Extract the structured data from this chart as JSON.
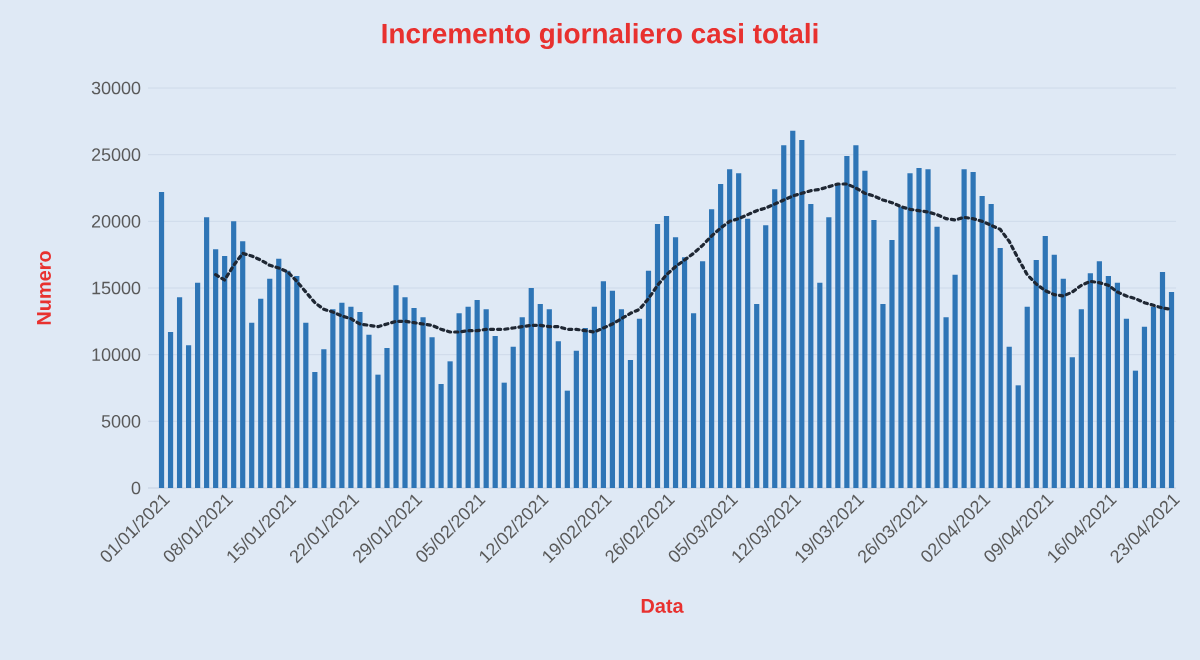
{
  "chart_data": {
    "type": "bar",
    "title": "Incremento giornaliero casi totali",
    "xlabel": "Data",
    "ylabel": "Numero",
    "categories": [
      "01/01/2021",
      null,
      null,
      null,
      null,
      null,
      null,
      "08/01/2021",
      null,
      null,
      null,
      null,
      null,
      null,
      "15/01/2021",
      null,
      null,
      null,
      null,
      null,
      null,
      "22/01/2021",
      null,
      null,
      null,
      null,
      null,
      null,
      "29/01/2021",
      null,
      null,
      null,
      null,
      null,
      null,
      "05/02/2021",
      null,
      null,
      null,
      null,
      null,
      null,
      "12/02/2021",
      null,
      null,
      null,
      null,
      null,
      null,
      "19/02/2021",
      null,
      null,
      null,
      null,
      null,
      null,
      "26/02/2021",
      null,
      null,
      null,
      null,
      null,
      null,
      "05/03/2021",
      null,
      null,
      null,
      null,
      null,
      null,
      "12/03/2021",
      null,
      null,
      null,
      null,
      null,
      null,
      "19/03/2021",
      null,
      null,
      null,
      null,
      null,
      null,
      "26/03/2021",
      null,
      null,
      null,
      null,
      null,
      null,
      "02/04/2021",
      null,
      null,
      null,
      null,
      null,
      null,
      "09/04/2021",
      null,
      null,
      null,
      null,
      null,
      null,
      "16/04/2021",
      null,
      null,
      null,
      null,
      null,
      null,
      "23/04/2021"
    ],
    "series": [
      {
        "color": "#2e75b6",
        "values": [
          22200,
          11700,
          14300,
          10700,
          15400,
          20300,
          17900,
          17400,
          20000,
          18500,
          12400,
          14200,
          15700,
          17200,
          16300,
          15900,
          12400,
          8700,
          10400,
          13400,
          13900,
          13600,
          13200,
          11500,
          8500,
          10500,
          15200,
          14300,
          13500,
          12800,
          11300,
          7800,
          9500,
          13100,
          13600,
          14100,
          13400,
          11400,
          7900,
          10600,
          12800,
          15000,
          13800,
          13400,
          11000,
          7300,
          10300,
          12000,
          13600,
          15500,
          14800,
          13400,
          9600,
          12700,
          16300,
          19800,
          20400,
          18800,
          17300,
          13100,
          17000,
          20900,
          22800,
          23900,
          23600,
          20200,
          13800,
          19700,
          22400,
          25700,
          26800,
          26100,
          21300,
          15400,
          20300,
          22800,
          24900,
          25700,
          23800,
          20100,
          13800,
          18600,
          21100,
          23600,
          24000,
          23900,
          19600,
          12800,
          16000,
          23900,
          23700,
          21900,
          21300,
          18000,
          10600,
          7700,
          13600,
          17100,
          18900,
          17500,
          15700,
          9800,
          13400,
          16100,
          17000,
          15900,
          15400,
          12700,
          8800,
          12100,
          13600,
          16200,
          14700
        ]
      },
      {
        "type": "line",
        "color": "#1f2733",
        "line_style": "dotted",
        "values": [
          null,
          null,
          null,
          null,
          null,
          null,
          16000,
          15600,
          16700,
          17600,
          17400,
          17100,
          16700,
          16500,
          16200,
          15500,
          14700,
          13900,
          13400,
          13200,
          12900,
          12700,
          12300,
          12200,
          12100,
          12300,
          12500,
          12500,
          12400,
          12300,
          12200,
          11900,
          11700,
          11700,
          11800,
          11800,
          11900,
          11900,
          11900,
          12000,
          12100,
          12200,
          12200,
          12100,
          12100,
          11900,
          11900,
          11800,
          11700,
          12000,
          12300,
          12700,
          13100,
          13400,
          14200,
          15200,
          16000,
          16600,
          17100,
          17600,
          18200,
          18900,
          19500,
          20000,
          20200,
          20500,
          20800,
          21000,
          21300,
          21600,
          21900,
          22100,
          22300,
          22400,
          22600,
          22800,
          22800,
          22500,
          22100,
          21900,
          21600,
          21400,
          21100,
          20900,
          20800,
          20700,
          20500,
          20200,
          20100,
          20300,
          20200,
          20000,
          19700,
          19400,
          18500,
          17200,
          16000,
          15300,
          14800,
          14500,
          14400,
          14700,
          15200,
          15500,
          15400,
          15200,
          14700,
          14400,
          14200,
          13900,
          13700,
          13500,
          13400
        ]
      }
    ],
    "ylim": [
      0,
      30000
    ],
    "yticks": [
      0,
      5000,
      10000,
      15000,
      20000,
      25000,
      30000
    ],
    "grid": "y"
  }
}
